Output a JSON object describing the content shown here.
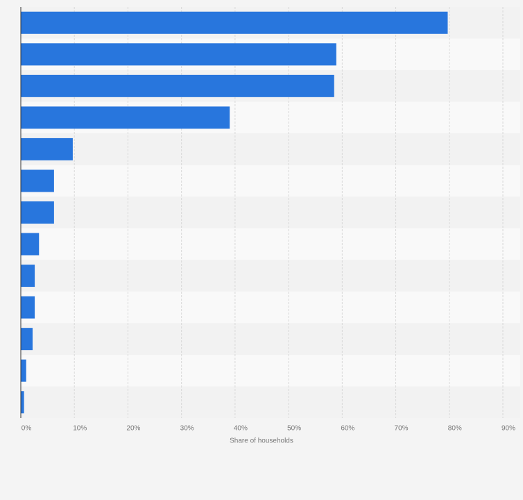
{
  "chart_data": {
    "type": "bar",
    "orientation": "horizontal",
    "x_label": "Share of households",
    "categories": [
      null,
      null,
      null,
      null,
      null,
      null,
      null,
      null,
      null,
      null,
      null,
      null,
      null
    ],
    "values": [
      79.7,
      58.9,
      58.5,
      39,
      9.7,
      6.2,
      6.2,
      3.4,
      2.6,
      2.6,
      2.2,
      1.0,
      0.6
    ],
    "color": "#2876dd",
    "xlim": [
      0,
      90
    ],
    "xticks": [
      {
        "value": 0,
        "label": "0%"
      },
      {
        "value": 10,
        "label": "10%"
      },
      {
        "value": 20,
        "label": "20%"
      },
      {
        "value": 30,
        "label": "30%"
      },
      {
        "value": 40,
        "label": "40%"
      },
      {
        "value": 50,
        "label": "50%"
      },
      {
        "value": 60,
        "label": "60%"
      },
      {
        "value": 70,
        "label": "70%"
      },
      {
        "value": 80,
        "label": "80%"
      },
      {
        "value": 90,
        "label": "90%"
      }
    ],
    "grid": true
  }
}
